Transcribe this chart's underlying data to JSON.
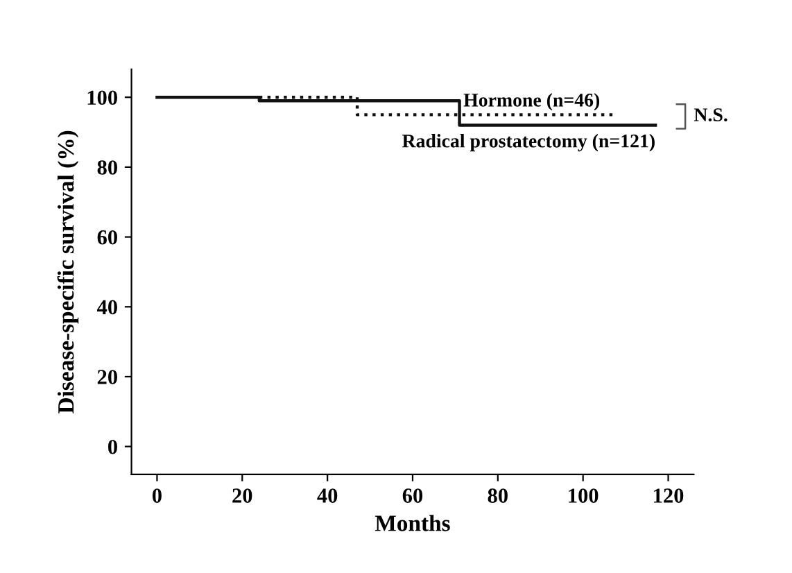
{
  "chart_data": {
    "type": "step",
    "xlabel": "Months",
    "ylabel": "Disease-specific survival (%)",
    "series": [
      {
        "name": "Radical prostatectomy (n=121)",
        "color": "#111111",
        "line_style": "solid",
        "x": [
          0,
          24,
          24,
          71,
          71,
          117
        ],
        "values": [
          100,
          100,
          99,
          99,
          92,
          92
        ]
      },
      {
        "name": "Hormone (n=46)",
        "color": "#111111",
        "line_style": "dotted",
        "x": [
          24,
          47,
          47,
          108
        ],
        "values": [
          100,
          100,
          95,
          95
        ]
      }
    ],
    "annotations": [
      "N.S."
    ],
    "xlim": [
      -6,
      126
    ],
    "ylim": [
      -8,
      108
    ],
    "xticks": [
      0,
      20,
      40,
      60,
      80,
      100,
      120
    ],
    "yticks": [
      0,
      20,
      40,
      60,
      80,
      100
    ],
    "grid": false,
    "legend": false
  }
}
